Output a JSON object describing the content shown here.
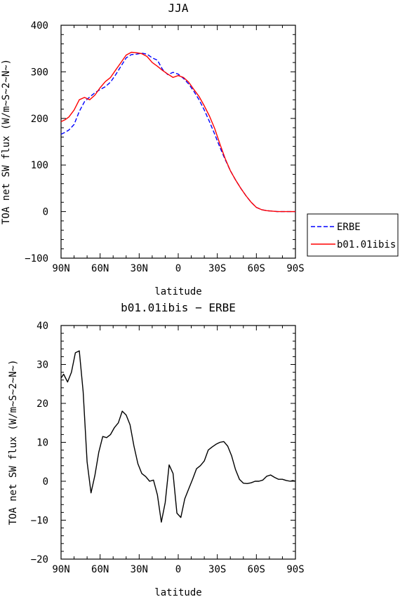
{
  "chart_data": [
    {
      "type": "line",
      "title": "JJA",
      "xlabel": "latitude",
      "ylabel": "TOA net SW flux (W/m~S~2~N~)",
      "xlim": [
        90,
        -90
      ],
      "ylim": [
        -100,
        400
      ],
      "xticks": [
        90,
        60,
        30,
        0,
        -30,
        -60,
        -90
      ],
      "xtick_labels": [
        "90N",
        "60N",
        "30N",
        "0",
        "30S",
        "60S",
        "90S"
      ],
      "yticks": [
        -100,
        0,
        100,
        200,
        300,
        400
      ],
      "ytick_labels": [
        "−100",
        "0",
        "100",
        "200",
        "300",
        "400"
      ],
      "legend_position": "right, outside plot",
      "series": [
        {
          "name": "ERBE",
          "color": "#0000ff",
          "dash": "dashed",
          "x": [
            90,
            87,
            84,
            80,
            76,
            72,
            68,
            64,
            60,
            56,
            52,
            48,
            44,
            40,
            36,
            32,
            28,
            24,
            20,
            16,
            12,
            8,
            4,
            0,
            -4,
            -8,
            -12,
            -16,
            -20,
            -24,
            -28,
            -32,
            -36,
            -40,
            -44,
            -48,
            -52,
            -56,
            -60,
            -64,
            -68,
            -72,
            -76,
            -80,
            -84,
            -88,
            -90
          ],
          "values": [
            166,
            170,
            175,
            187,
            215,
            236,
            246,
            255,
            262,
            268,
            278,
            294,
            312,
            330,
            337,
            338,
            340,
            338,
            330,
            325,
            305,
            294,
            299,
            295,
            286,
            274,
            258,
            240,
            218,
            193,
            166,
            138,
            112,
            88,
            68,
            50,
            34,
            20,
            9,
            4,
            2,
            1,
            0,
            0,
            0,
            0,
            0
          ]
        },
        {
          "name": "b01.01ibis",
          "color": "#ff0000",
          "dash": "solid",
          "x": [
            90,
            87,
            84,
            80,
            76,
            72,
            68,
            64,
            60,
            56,
            52,
            48,
            44,
            40,
            36,
            32,
            28,
            24,
            20,
            16,
            12,
            8,
            4,
            0,
            -4,
            -8,
            -12,
            -16,
            -20,
            -24,
            -28,
            -32,
            -36,
            -40,
            -44,
            -48,
            -52,
            -56,
            -60,
            -64,
            -68,
            -72,
            -76,
            -80,
            -84,
            -88,
            -90
          ],
          "values": [
            193,
            197,
            203,
            218,
            240,
            245,
            240,
            250,
            266,
            279,
            288,
            304,
            320,
            336,
            342,
            341,
            339,
            333,
            320,
            312,
            303,
            295,
            288,
            292,
            288,
            278,
            262,
            247,
            227,
            205,
            178,
            145,
            114,
            88,
            68,
            50,
            34,
            20,
            9,
            4,
            2,
            1,
            0,
            0,
            0,
            0,
            0
          ]
        }
      ]
    },
    {
      "type": "line",
      "title": "b01.01ibis − ERBE",
      "xlabel": "latitude",
      "ylabel": "TOA net SW flux (W/m~S~2~N~)",
      "xlim": [
        90,
        -90
      ],
      "ylim": [
        -20,
        40
      ],
      "xticks": [
        90,
        60,
        30,
        0,
        -30,
        -60,
        -90
      ],
      "xtick_labels": [
        "90N",
        "60N",
        "30N",
        "0",
        "30S",
        "60S",
        "90S"
      ],
      "yticks": [
        -20,
        -10,
        0,
        10,
        20,
        30,
        40
      ],
      "ytick_labels": [
        "−20",
        "−10",
        "0",
        "10",
        "20",
        "30",
        "40"
      ],
      "series": [
        {
          "color": "#000000",
          "dash": "solid",
          "x": [
            90,
            88,
            85,
            82,
            79,
            76,
            73,
            70,
            67,
            64,
            61,
            58,
            55,
            52,
            49,
            46,
            43,
            40,
            37,
            34,
            31,
            28,
            25,
            22,
            19,
            16,
            13,
            10,
            7,
            4,
            1,
            -2,
            -5,
            -8,
            -11,
            -14,
            -17,
            -20,
            -23,
            -26,
            -29,
            -32,
            -35,
            -38,
            -41,
            -44,
            -47,
            -50,
            -53,
            -56,
            -59,
            -62,
            -65,
            -68,
            -71,
            -74,
            -77,
            -80,
            -83,
            -86,
            -88,
            -90
          ],
          "values": [
            26.5,
            27.5,
            25.5,
            28,
            33,
            33.5,
            23,
            5,
            -3,
            1.5,
            7.5,
            11.5,
            11.2,
            12,
            13.8,
            15,
            18,
            17,
            14.5,
            9,
            4.5,
            2,
            1.2,
            0,
            0.3,
            -3.5,
            -10.5,
            -5.5,
            4.2,
            2,
            -8.2,
            -9.3,
            -4.5,
            -2,
            0.5,
            3.2,
            4,
            5.2,
            8,
            8.8,
            9.5,
            10,
            10.2,
            9,
            6.5,
            3,
            0.5,
            -0.5,
            -0.6,
            -0.4,
            0,
            0,
            0.3,
            1.3,
            1.6,
            1.0,
            0.5,
            0.5,
            0.2,
            0,
            0.2,
            0
          ]
        }
      ]
    }
  ]
}
